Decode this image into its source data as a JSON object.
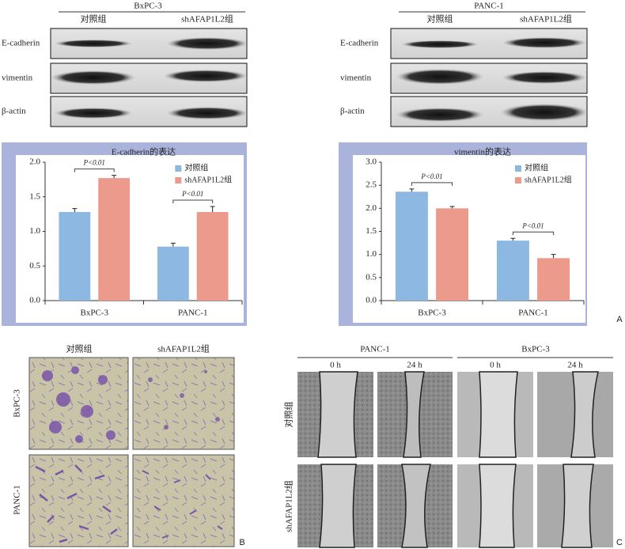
{
  "western_blot": [
    {
      "cell_line": "BxPC-3",
      "groups": [
        "对照组",
        "shAFAP1L2组"
      ],
      "rows": [
        "E-cadherin",
        "vimentin",
        "β-actin"
      ]
    },
    {
      "cell_line": "PANC-1",
      "groups": [
        "对照组",
        "shAFAP1L2组"
      ],
      "rows": [
        "E-cadherin",
        "vimentin",
        "β-actin"
      ]
    }
  ],
  "chart_data": [
    {
      "type": "bar",
      "title": "E-cadherin的表达",
      "categories": [
        "BxPC-3",
        "PANC-1"
      ],
      "series": [
        {
          "name": "对照组",
          "color": "#8db8e2",
          "values": [
            1.28,
            0.78
          ],
          "errors": [
            0.05,
            0.05
          ]
        },
        {
          "name": "shAFAP1L2组",
          "color": "#ec9a8c",
          "values": [
            1.77,
            1.28
          ],
          "errors": [
            0.04,
            0.08
          ]
        }
      ],
      "ylim": [
        0,
        2
      ],
      "yticks": [
        {
          "value": 0,
          "label": "0.0"
        },
        {
          "value": 0.5,
          "label": "0.5"
        },
        {
          "value": 1,
          "label": "1.0"
        },
        {
          "value": 1.5,
          "label": "1.5"
        },
        {
          "value": 2,
          "label": "2.0"
        }
      ],
      "annotations": [
        "P<0.01",
        "P<0.01"
      ]
    },
    {
      "type": "bar",
      "title": "vimentin的表达",
      "categories": [
        "BxPC-3",
        "PANC-1"
      ],
      "series": [
        {
          "name": "对照组",
          "color": "#8db8e2",
          "values": [
            2.36,
            1.3
          ],
          "errors": [
            0.06,
            0.05
          ]
        },
        {
          "name": "shAFAP1L2组",
          "color": "#ec9a8c",
          "values": [
            2.0,
            0.92
          ],
          "errors": [
            0.04,
            0.08
          ]
        }
      ],
      "ylim": [
        0,
        3
      ],
      "yticks": [
        {
          "value": 0,
          "label": "0.0"
        },
        {
          "value": 0.5,
          "label": "0.5"
        },
        {
          "value": 1,
          "label": "1.0"
        },
        {
          "value": 1.5,
          "label": "1.5"
        },
        {
          "value": 2,
          "label": "2.0"
        },
        {
          "value": 2.5,
          "label": "2.5"
        },
        {
          "value": 3,
          "label": "3.0"
        }
      ],
      "annotations": [
        "P<0.01",
        "P<0.01"
      ]
    }
  ],
  "panel_labels": [
    "A",
    "B",
    "C"
  ],
  "transwell": {
    "columns": [
      "对照组",
      "shAFAP1L2组"
    ],
    "rows": [
      "BxPC-3",
      "PANC-1"
    ]
  },
  "wound_healing": {
    "cell_lines": [
      "PANC-1",
      "BxPC-3"
    ],
    "times": [
      "0 h",
      "24 h",
      "0 h",
      "24 h"
    ],
    "rows": [
      "对照组",
      "shAFAP1L2组"
    ]
  }
}
